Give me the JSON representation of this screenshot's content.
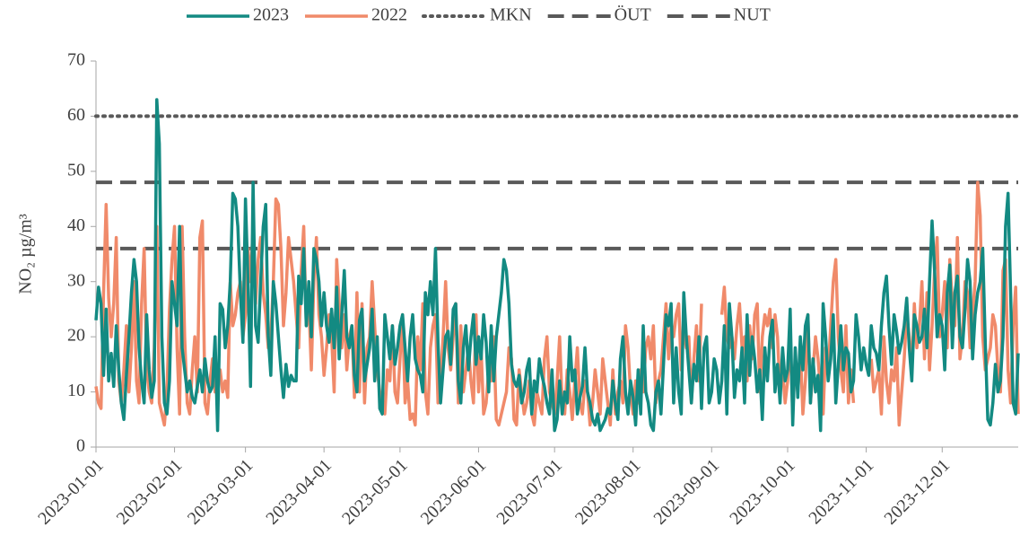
{
  "chart_data": {
    "type": "line",
    "ylabel": "NO₂ µg/m³",
    "xlim": [
      "2023-01-01",
      "2023-12-31"
    ],
    "xticks": [
      "2023-01-01",
      "2023-02-01",
      "2023-03-01",
      "2023-04-01",
      "2023-05-01",
      "2023-06-01",
      "2023-07-01",
      "2023-08-01",
      "2023-09-01",
      "2023-10-01",
      "2023-11-01",
      "2023-12-01"
    ],
    "ylim": [
      0,
      70
    ],
    "yticks": [
      0,
      10,
      20,
      30,
      40,
      50,
      60,
      70
    ],
    "x_start": "2023-01-01",
    "x_step_days": 1,
    "series": [
      {
        "name": "2023",
        "color": "#138a82",
        "values": [
          23,
          29,
          26,
          13,
          25,
          12,
          17,
          11,
          22,
          14,
          8,
          5,
          13,
          20,
          28,
          34,
          30,
          18,
          12,
          8,
          24,
          14,
          9,
          12,
          63,
          55,
          20,
          8,
          6,
          12,
          30,
          26,
          22,
          40,
          18,
          14,
          10,
          12,
          9,
          8,
          11,
          14,
          10,
          16,
          12,
          10,
          11,
          20,
          3,
          26,
          25,
          18,
          22,
          30,
          46,
          45,
          40,
          28,
          19,
          45,
          30,
          11,
          48,
          22,
          19,
          30,
          40,
          44,
          20,
          13,
          30,
          26,
          20,
          14,
          9,
          15,
          11,
          13,
          12,
          12,
          31,
          26,
          36,
          22,
          30,
          20,
          36,
          34,
          30,
          22,
          28,
          22,
          19,
          25,
          18,
          29,
          16,
          24,
          32,
          20,
          18,
          22,
          13,
          10,
          23,
          25,
          12,
          15,
          18,
          25,
          12,
          20,
          7,
          6,
          24,
          20,
          16,
          22,
          15,
          18,
          22,
          24,
          18,
          12,
          20,
          24,
          16,
          14,
          13,
          10,
          28,
          24,
          30,
          24,
          36,
          19,
          8,
          14,
          20,
          21,
          15,
          25,
          26,
          12,
          8,
          18,
          22,
          14,
          20,
          24,
          15,
          20,
          16,
          24,
          19,
          10,
          22,
          12,
          20,
          24,
          28,
          34,
          32,
          26,
          15,
          12,
          11,
          13,
          8,
          10,
          14,
          16,
          6,
          12,
          10,
          16,
          13,
          11,
          8,
          6,
          14,
          3,
          5,
          12,
          6,
          10,
          8,
          20,
          12,
          14,
          6,
          9,
          11,
          18,
          10,
          8,
          5,
          4,
          6,
          3,
          4,
          5,
          7,
          6,
          12,
          8,
          5,
          16,
          20,
          10,
          6,
          12,
          9,
          4,
          14,
          6,
          22,
          10,
          8,
          4,
          3,
          10,
          12,
          6,
          15,
          24,
          22,
          26,
          8,
          18,
          10,
          6,
          28,
          20,
          14,
          8,
          15,
          12,
          20,
          7,
          18,
          20,
          8,
          10,
          16,
          14,
          8,
          12,
          22,
          6,
          26,
          20,
          9,
          14,
          12,
          18,
          8,
          24,
          13,
          20,
          16,
          10,
          14,
          5,
          18,
          12,
          20,
          23,
          10,
          15,
          8,
          18,
          12,
          14,
          25,
          4,
          18,
          9,
          20,
          14,
          22,
          24,
          8,
          16,
          10,
          13,
          3,
          26,
          20,
          12,
          16,
          24,
          8,
          15,
          22,
          14,
          18,
          17,
          10,
          12,
          24,
          20,
          14,
          18,
          15,
          13,
          22,
          18,
          17,
          14,
          22,
          28,
          31,
          22,
          15,
          24,
          21,
          17,
          19,
          22,
          27,
          18,
          12,
          24,
          22,
          19,
          20,
          25,
          18,
          30,
          41,
          32,
          20,
          24,
          22,
          14,
          28,
          33,
          18,
          28,
          31,
          20,
          18,
          25,
          34,
          30,
          16,
          24,
          28,
          30,
          36,
          19,
          5,
          4,
          8,
          15,
          10,
          12,
          20,
          40,
          46,
          28,
          8,
          6,
          17
        ]
      },
      {
        "name": "2022",
        "color": "#f08a6a",
        "values": [
          11,
          8,
          7,
          28,
          44,
          27,
          20,
          26,
          38,
          12,
          8,
          14,
          22,
          10,
          18,
          30,
          12,
          8,
          26,
          36,
          14,
          10,
          8,
          18,
          40,
          8,
          6,
          4,
          10,
          25,
          34,
          40,
          18,
          6,
          40,
          20,
          8,
          6,
          14,
          20,
          10,
          38,
          41,
          8,
          6,
          12,
          16,
          10,
          12,
          14,
          10,
          12,
          9,
          30,
          22,
          24,
          28,
          30,
          20,
          24,
          36,
          30,
          40,
          26,
          34,
          38,
          28,
          24,
          18,
          20,
          30,
          45,
          44,
          36,
          22,
          28,
          38,
          34,
          30,
          24,
          18,
          32,
          40,
          22,
          26,
          14,
          30,
          38,
          24,
          20,
          13,
          18,
          24,
          20,
          10,
          34,
          26,
          18,
          24,
          14,
          20,
          22,
          9,
          28,
          10,
          26,
          8,
          18,
          20,
          30,
          22,
          14,
          10,
          8,
          6,
          14,
          12,
          22,
          10,
          8,
          16,
          24,
          8,
          12,
          5,
          6,
          4,
          20,
          14,
          26,
          10,
          6,
          18,
          22,
          24,
          8,
          12,
          20,
          30,
          18,
          14,
          20,
          26,
          8,
          22,
          10,
          14,
          18,
          12,
          8,
          24,
          10,
          18,
          6,
          8,
          14,
          12,
          20,
          5,
          4,
          6,
          8,
          10,
          18,
          16,
          5,
          4,
          14,
          10,
          6,
          8,
          12,
          6,
          4,
          10,
          8,
          6,
          16,
          20,
          10,
          8,
          6,
          12,
          20,
          8,
          6,
          14,
          10,
          5,
          12,
          18,
          8,
          6,
          12,
          10,
          4,
          8,
          14,
          10,
          6,
          16,
          12,
          8,
          4,
          14,
          6,
          10,
          12,
          8,
          22,
          18,
          10,
          6,
          12,
          8,
          14,
          10,
          18,
          20,
          16,
          22,
          8,
          12,
          14,
          20,
          26,
          16,
          22,
          20,
          24,
          26,
          14,
          22,
          18,
          20,
          8,
          16,
          22,
          12,
          26,
          null,
          null,
          null,
          null,
          null,
          null,
          null,
          24,
          29,
          20,
          18,
          20,
          16,
          22,
          26,
          18,
          20,
          12,
          22,
          16,
          24,
          26,
          10,
          20,
          24,
          22,
          25,
          18,
          24,
          20,
          10,
          14,
          8,
          12,
          20,
          6,
          16,
          10,
          18,
          6,
          12,
          24,
          8,
          14,
          20,
          16,
          10,
          6,
          18,
          14,
          22,
          30,
          34,
          20,
          14,
          10,
          22,
          8,
          14,
          8,
          null,
          null,
          null,
          null,
          null,
          null,
          16,
          10,
          12,
          14,
          6,
          20,
          12,
          8,
          14,
          12,
          18,
          4,
          10,
          16,
          24,
          20,
          14,
          26,
          18,
          22,
          30,
          16,
          28,
          14,
          22,
          32,
          38,
          20,
          24,
          30,
          18,
          34,
          26,
          22,
          38,
          16,
          20,
          30,
          28,
          18,
          24,
          30,
          48,
          42,
          20,
          14,
          16,
          18,
          24,
          22,
          14,
          10,
          32,
          34,
          14,
          8,
          22,
          29,
          6
        ]
      }
    ],
    "reference_lines": [
      {
        "name": "MKN",
        "value": 60,
        "style": "dotted",
        "color": "#595959"
      },
      {
        "name": "ÖUT",
        "value": 48,
        "style": "dashed",
        "color": "#595959"
      },
      {
        "name": "NUT",
        "value": 36,
        "style": "dashed",
        "color": "#595959"
      }
    ]
  }
}
